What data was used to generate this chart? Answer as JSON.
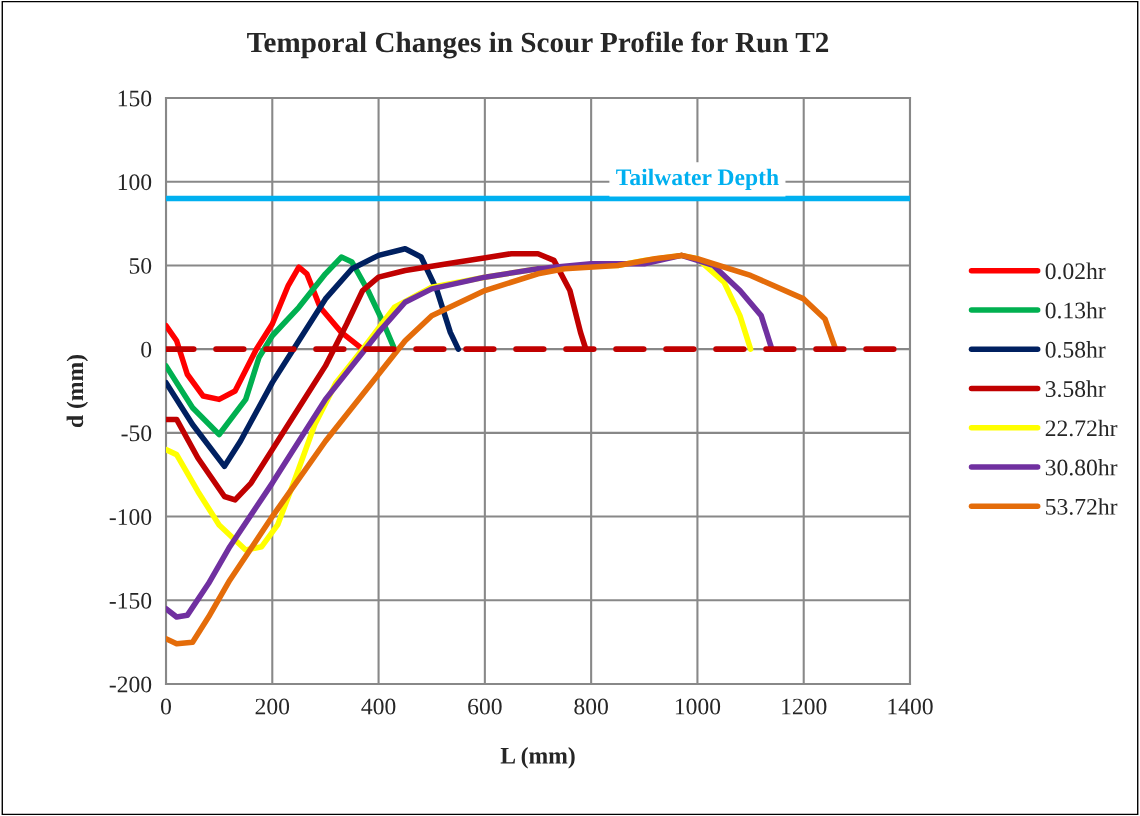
{
  "chart_data": {
    "type": "line",
    "title": "Temporal Changes in Scour Profile for Run T2",
    "xlabel": "L (mm)",
    "ylabel": "d (mm)",
    "xlim": [
      0,
      1400
    ],
    "xticks": [
      0,
      200,
      400,
      600,
      800,
      1000,
      1200,
      1400
    ],
    "ylim": [
      -200,
      150
    ],
    "yticks": [
      -200,
      -150,
      -100,
      -50,
      0,
      50,
      100,
      150
    ],
    "grid": true,
    "legend": "right",
    "marker": "none",
    "ref_lines": [
      {
        "axis": "y",
        "value": 90,
        "label": "Tailwater Depth",
        "color": "#00b0f0",
        "line_style": "solid"
      }
    ],
    "series": [
      {
        "name": "0.02hr",
        "color": "#ff0000",
        "x": [
          0,
          20,
          40,
          70,
          100,
          130,
          170,
          200,
          230,
          250,
          265,
          290,
          330,
          370
        ],
        "values": [
          14,
          5,
          -15,
          -28,
          -30,
          -25,
          0,
          15,
          38,
          49,
          45,
          25,
          10,
          0
        ]
      },
      {
        "name": "0.13hr",
        "color": "#00b050",
        "x": [
          0,
          50,
          100,
          150,
          175,
          200,
          250,
          300,
          330,
          350,
          380,
          410,
          430
        ],
        "values": [
          -10,
          -35,
          -51,
          -30,
          -5,
          8,
          25,
          45,
          55,
          52,
          35,
          15,
          0
        ]
      },
      {
        "name": "0.58hr",
        "color": "#002060",
        "x": [
          0,
          50,
          110,
          140,
          200,
          250,
          300,
          350,
          400,
          450,
          480,
          510,
          535,
          550
        ],
        "values": [
          -20,
          -45,
          -70,
          -55,
          -20,
          5,
          30,
          48,
          56,
          60,
          55,
          35,
          10,
          0
        ]
      },
      {
        "name": "3.58hr",
        "color": "#c00000",
        "x": [
          0,
          20,
          60,
          110,
          130,
          160,
          250,
          300,
          340,
          370,
          400,
          450,
          550,
          650,
          700,
          730,
          760,
          780,
          790
        ],
        "values": [
          -42,
          -42,
          -65,
          -88,
          -90,
          -80,
          -35,
          -10,
          15,
          35,
          43,
          47,
          52,
          57,
          57,
          53,
          35,
          10,
          0
        ]
      },
      {
        "name": "22.72hr",
        "color": "#ffff00",
        "x": [
          0,
          20,
          60,
          100,
          150,
          180,
          210,
          240,
          280,
          320,
          370,
          430,
          500,
          600,
          700,
          800,
          850,
          900,
          970,
          1000,
          1050,
          1080,
          1100
        ],
        "values": [
          -60,
          -63,
          -85,
          -105,
          -120,
          -118,
          -105,
          -80,
          -45,
          -20,
          0,
          25,
          37,
          43,
          48,
          50,
          50,
          53,
          56,
          54,
          40,
          20,
          0
        ]
      },
      {
        "name": "30.80hr",
        "color": "#7030a0",
        "x": [
          0,
          20,
          40,
          80,
          120,
          200,
          300,
          400,
          450,
          500,
          600,
          700,
          800,
          900,
          970,
          1030,
          1080,
          1120,
          1140
        ],
        "values": [
          -155,
          -160,
          -159,
          -140,
          -118,
          -80,
          -30,
          10,
          28,
          36,
          43,
          48,
          51,
          51,
          56,
          50,
          35,
          20,
          0
        ]
      },
      {
        "name": "53.72hr",
        "color": "#e46c0a",
        "x": [
          0,
          20,
          50,
          80,
          120,
          200,
          300,
          400,
          450,
          500,
          600,
          700,
          750,
          850,
          920,
          970,
          1000,
          1100,
          1200,
          1240,
          1260
        ],
        "values": [
          -173,
          -176,
          -175,
          -160,
          -138,
          -100,
          -55,
          -15,
          5,
          20,
          35,
          45,
          48,
          50,
          54,
          56,
          54,
          44,
          30,
          18,
          0
        ]
      },
      {
        "color": "#c00000",
        "line_style": "dashed",
        "x": [
          0,
          1400
        ],
        "values": [
          0,
          0
        ]
      }
    ]
  }
}
